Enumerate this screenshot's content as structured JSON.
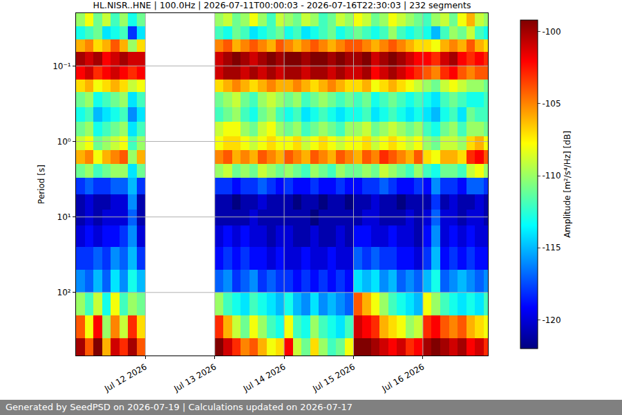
{
  "chart_data": {
    "type": "heatmap",
    "title": "HL.NISR..HNE | 100.0Hz | 2026-07-11T00:00:03 - 2026-07-16T22:30:03 | 232 segments",
    "y_label": "Period [s]",
    "footer": "Generated by SeedPSD on 2026-07-19 | Calculations updated on 2026-07-17",
    "color": "jet",
    "log": "y",
    "grid": true,
    "xlim": [
      "2026-07-11T00:00:03",
      "2026-07-16T22:30:03"
    ],
    "ylim": [
      0.02,
      684
    ],
    "xticks": [
      {
        "value": "2026-07-12T00:00:00",
        "label": "Jul 12 2026"
      },
      {
        "value": "2026-07-13T00:00:00",
        "label": "Jul 13 2026"
      },
      {
        "value": "2026-07-14T00:00:00",
        "label": "Jul 14 2026"
      },
      {
        "value": "2026-07-15T00:00:00",
        "label": "Jul 15 2026"
      },
      {
        "value": "2026-07-16T00:00:00",
        "label": "Jul 16 2026"
      }
    ],
    "yticks": [
      {
        "value": 0.1,
        "label": "10⁻¹"
      },
      {
        "value": 1,
        "label": "10⁰"
      },
      {
        "value": 10,
        "label": "10¹"
      },
      {
        "value": 100,
        "label": "10²"
      }
    ],
    "colorbar": {
      "title": "Amplitude [m²/s⁴/Hz] [dB]",
      "range": [
        -122,
        -99.2
      ],
      "ticks": [
        -100,
        -105,
        -110,
        -115,
        -120
      ]
    },
    "x": [
      "2026-07-11T00:00:03",
      "2026-07-11T03:00:03",
      "2026-07-11T06:00:03",
      "2026-07-11T09:00:03",
      "2026-07-11T12:00:03",
      "2026-07-11T15:00:03",
      "2026-07-11T18:00:03",
      "2026-07-11T21:00:03",
      "2026-07-12T00:00:03",
      "2026-07-12T03:00:03",
      "2026-07-12T06:00:03",
      "2026-07-12T09:00:03",
      "2026-07-12T12:00:03",
      "2026-07-12T15:00:03",
      "2026-07-12T18:00:03",
      "2026-07-12T21:00:03",
      "2026-07-13T00:00:03",
      "2026-07-13T03:00:03",
      "2026-07-13T06:00:03",
      "2026-07-13T09:00:03",
      "2026-07-13T12:00:03",
      "2026-07-13T15:00:03",
      "2026-07-13T18:00:03",
      "2026-07-13T21:00:03",
      "2026-07-14T00:00:03",
      "2026-07-14T03:00:03",
      "2026-07-14T06:00:03",
      "2026-07-14T09:00:03",
      "2026-07-14T12:00:03",
      "2026-07-14T15:00:03",
      "2026-07-14T18:00:03",
      "2026-07-14T21:00:03",
      "2026-07-15T00:00:03",
      "2026-07-15T03:00:03",
      "2026-07-15T06:00:03",
      "2026-07-15T09:00:03",
      "2026-07-15T12:00:03",
      "2026-07-15T15:00:03",
      "2026-07-15T18:00:03",
      "2026-07-15T21:00:03",
      "2026-07-16T00:00:03",
      "2026-07-16T03:00:03",
      "2026-07-16T06:00:03",
      "2026-07-16T09:00:03",
      "2026-07-16T12:00:03",
      "2026-07-16T15:00:03",
      "2026-07-16T18:00:03",
      "2026-07-16T21:00:03",
      "2026-07-16T22:30:03"
    ],
    "y": [
      0.02,
      0.03,
      0.045,
      0.065,
      0.1,
      0.15,
      0.22,
      0.35,
      0.55,
      0.85,
      1.3,
      2,
      3,
      5,
      8,
      13,
      25,
      50,
      100,
      200,
      400,
      684
    ],
    "z": [
      [
        -110,
        -108,
        -111,
        -109,
        -112,
        -110,
        -113,
        -111,
        null,
        null,
        null,
        null,
        null,
        null,
        null,
        null,
        -110,
        -109,
        -111,
        -110,
        -108,
        -110,
        -112,
        -109,
        -110,
        -111,
        -109,
        -110,
        -112,
        -111,
        -109,
        -110,
        -108,
        -109,
        -111,
        -110,
        -108,
        -109,
        -110,
        -111,
        -112,
        -110,
        -109,
        -111,
        -108,
        -106,
        -109,
        -110
      ],
      [
        -113,
        -112,
        -111,
        -114,
        -113,
        -112,
        -118,
        -114,
        null,
        null,
        null,
        null,
        null,
        null,
        null,
        null,
        -112,
        -113,
        -111,
        -112,
        -114,
        -113,
        -112,
        -111,
        -113,
        -112,
        -114,
        -113,
        -112,
        -111,
        -113,
        -112,
        -111,
        -112,
        -113,
        -112,
        -110,
        -112,
        -113,
        -112,
        -113,
        -115,
        -112,
        -110,
        -111,
        -109,
        -112,
        -113
      ],
      [
        -106,
        -105,
        -107,
        -106,
        -104,
        -106,
        -110,
        -107,
        null,
        null,
        null,
        null,
        null,
        null,
        null,
        null,
        -105,
        -104,
        -106,
        -105,
        -104,
        -105,
        -106,
        -104,
        -105,
        -106,
        -105,
        -104,
        -105,
        -106,
        -105,
        -104,
        -104,
        -105,
        -106,
        -105,
        -104,
        -105,
        -106,
        -107,
        -107,
        -108,
        -106,
        -105,
        -106,
        -104,
        -106,
        -107
      ],
      [
        -100,
        -101,
        -100,
        -102,
        -101,
        -100,
        -101,
        -101,
        null,
        null,
        null,
        null,
        null,
        null,
        null,
        null,
        -101,
        -100,
        -99,
        -100,
        -101,
        -100,
        -99,
        -100,
        -99,
        -99,
        -100,
        -99,
        -99,
        -100,
        -99,
        -100,
        -100,
        -99,
        -101,
        -100,
        -99,
        -100,
        -101,
        -102,
        -102,
        -103,
        -101,
        -100,
        -102,
        -103,
        -102,
        -103
      ],
      [
        -102,
        -101,
        -103,
        -102,
        -101,
        -102,
        -103,
        -102,
        null,
        null,
        null,
        null,
        null,
        null,
        null,
        null,
        -101,
        -100,
        -100,
        -101,
        -100,
        -101,
        -100,
        -101,
        -100,
        -100,
        -101,
        -100,
        -100,
        -101,
        -100,
        -101,
        -101,
        -100,
        -102,
        -101,
        -100,
        -101,
        -102,
        -103,
        -104,
        -105,
        -103,
        -102,
        -104,
        -105,
        -104,
        -104
      ],
      [
        -107,
        -106,
        -108,
        -107,
        -106,
        -107,
        -109,
        -108,
        null,
        null,
        null,
        null,
        null,
        null,
        null,
        null,
        -107,
        -106,
        -105,
        -106,
        -107,
        -106,
        -105,
        -106,
        -106,
        -105,
        -106,
        -107,
        -106,
        -105,
        -106,
        -107,
        -107,
        -106,
        -108,
        -107,
        -106,
        -107,
        -108,
        -109,
        -110,
        -111,
        -109,
        -108,
        -109,
        -110,
        -110,
        -111
      ],
      [
        -111,
        -110,
        -113,
        -112,
        -111,
        -110,
        -114,
        -112,
        null,
        null,
        null,
        null,
        null,
        null,
        null,
        null,
        -111,
        -110,
        -109,
        -111,
        -112,
        -110,
        -109,
        -110,
        -111,
        -110,
        -112,
        -111,
        -110,
        -111,
        -112,
        -111,
        -112,
        -111,
        -113,
        -112,
        -111,
        -112,
        -113,
        -112,
        -113,
        -114,
        -112,
        -111,
        -112,
        -113,
        -113,
        -112
      ],
      [
        -113,
        -112,
        -115,
        -114,
        -113,
        -112,
        -116,
        -114,
        null,
        null,
        null,
        null,
        null,
        null,
        null,
        null,
        -112,
        -111,
        -110,
        -112,
        -113,
        -111,
        -110,
        -112,
        -113,
        -112,
        -114,
        -113,
        -112,
        -113,
        -114,
        -113,
        -113,
        -112,
        -114,
        -113,
        -112,
        -113,
        -114,
        -113,
        -114,
        -115,
        -113,
        -112,
        -114,
        -111,
        -112,
        -112
      ],
      [
        -111,
        -110,
        -113,
        -112,
        -111,
        -110,
        -114,
        -112,
        null,
        null,
        null,
        null,
        null,
        null,
        null,
        null,
        -109,
        -108,
        -108,
        -110,
        -111,
        -109,
        -108,
        -110,
        -111,
        -110,
        -112,
        -111,
        -110,
        -111,
        -112,
        -110,
        -110,
        -109,
        -111,
        -110,
        -109,
        -110,
        -111,
        -110,
        -112,
        -113,
        -111,
        -110,
        -112,
        -110,
        -110,
        -111
      ],
      [
        -109,
        -108,
        -111,
        -110,
        -109,
        -108,
        -112,
        -110,
        null,
        null,
        null,
        null,
        null,
        null,
        null,
        null,
        -108,
        -107,
        -107,
        -108,
        -109,
        -108,
        -107,
        -108,
        -108,
        -107,
        -109,
        -108,
        -107,
        -108,
        -109,
        -108,
        -108,
        -107,
        -109,
        -108,
        -107,
        -108,
        -109,
        -108,
        -110,
        -111,
        -109,
        -109,
        -110,
        -107,
        -106,
        -108
      ],
      [
        -106,
        -105,
        -108,
        -106,
        -105,
        -104,
        -110,
        -106,
        null,
        null,
        null,
        null,
        null,
        null,
        null,
        null,
        -105,
        -104,
        -106,
        -105,
        -106,
        -104,
        -105,
        -106,
        -104,
        -105,
        -106,
        -104,
        -105,
        -106,
        -104,
        -105,
        -106,
        -104,
        -105,
        -103,
        -104,
        -105,
        -106,
        -104,
        -107,
        -108,
        -106,
        -106,
        -107,
        -103,
        -102,
        -104
      ],
      [
        -111,
        -110,
        -112,
        -111,
        -110,
        -110,
        -114,
        -111,
        null,
        null,
        null,
        null,
        null,
        null,
        null,
        null,
        -110,
        -109,
        -111,
        -110,
        -111,
        -109,
        -110,
        -111,
        -110,
        -111,
        -112,
        -110,
        -111,
        -112,
        -110,
        -111,
        -111,
        -110,
        -111,
        -109,
        -110,
        -111,
        -112,
        -110,
        -112,
        -113,
        -111,
        -111,
        -112,
        -109,
        -108,
        -110
      ],
      [
        -118,
        -117,
        -118,
        -118,
        -117,
        -117,
        -115,
        -118,
        null,
        null,
        null,
        null,
        null,
        null,
        null,
        null,
        -118,
        -118,
        -119,
        -118,
        -118,
        -117,
        -118,
        -119,
        -118,
        -119,
        -119,
        -118,
        -119,
        -119,
        -118,
        -119,
        -119,
        -118,
        -118,
        -117,
        -118,
        -119,
        -119,
        -118,
        -119,
        -116,
        -118,
        -118,
        -119,
        -117,
        -117,
        -118
      ],
      [
        -121,
        -120,
        -121,
        -121,
        -120,
        -120,
        -116,
        -121,
        null,
        null,
        null,
        null,
        null,
        null,
        null,
        null,
        -121,
        -121,
        -122,
        -121,
        -121,
        -120,
        -121,
        -121,
        -121,
        -122,
        -121,
        -121,
        -122,
        -121,
        -121,
        -122,
        -121,
        -121,
        -120,
        -121,
        -121,
        -122,
        -121,
        -121,
        -121,
        -118,
        -121,
        -120,
        -121,
        -121,
        -120,
        -121
      ],
      [
        -121,
        -120,
        -121,
        -120,
        -120,
        -120,
        -117,
        -121,
        null,
        null,
        null,
        null,
        null,
        null,
        null,
        null,
        -121,
        -121,
        -121,
        -121,
        -120,
        -121,
        -121,
        -121,
        -121,
        -121,
        -121,
        -122,
        -121,
        -121,
        -121,
        -121,
        -121,
        -120,
        -120,
        -121,
        -121,
        -121,
        -120,
        -121,
        -120,
        -117,
        -120,
        -120,
        -121,
        -120,
        -120,
        -121
      ],
      [
        -120,
        -119,
        -120,
        -119,
        -119,
        -118,
        -116,
        -120,
        null,
        null,
        null,
        null,
        null,
        null,
        null,
        null,
        -120,
        -119,
        -120,
        -119,
        -120,
        -120,
        -121,
        -120,
        -120,
        -121,
        -121,
        -120,
        -121,
        -121,
        -120,
        -121,
        -119,
        -119,
        -120,
        -120,
        -119,
        -120,
        -120,
        -121,
        -119,
        -116,
        -120,
        -119,
        -120,
        -119,
        -120,
        -120
      ],
      [
        -118,
        -118,
        -117,
        -118,
        -116,
        -117,
        -115,
        -118,
        null,
        null,
        null,
        null,
        null,
        null,
        null,
        null,
        -119,
        -118,
        -119,
        -118,
        -119,
        -119,
        -120,
        -119,
        -120,
        -120,
        -119,
        -120,
        -120,
        -119,
        -120,
        -120,
        -117,
        -118,
        -117,
        -118,
        -118,
        -119,
        -119,
        -120,
        -118,
        -115,
        -119,
        -118,
        -119,
        -118,
        -119,
        -119
      ],
      [
        -116,
        -117,
        -115,
        -117,
        -114,
        -116,
        -113,
        -115,
        null,
        null,
        null,
        null,
        null,
        null,
        null,
        null,
        -117,
        -116,
        -118,
        -117,
        -116,
        -118,
        -117,
        -118,
        -118,
        -119,
        -118,
        -119,
        -118,
        -119,
        -118,
        -119,
        -114,
        -115,
        -114,
        -116,
        -115,
        -117,
        -116,
        -117,
        -115,
        -113,
        -117,
        -116,
        -115,
        -116,
        -117,
        -116
      ],
      [
        -110,
        -112,
        -109,
        -113,
        -108,
        -112,
        -110,
        -111,
        null,
        null,
        null,
        null,
        null,
        null,
        null,
        null,
        -110,
        -112,
        -113,
        -114,
        -112,
        -113,
        -114,
        -115,
        -113,
        -115,
        -116,
        -114,
        -116,
        -115,
        -116,
        -117,
        -104,
        -106,
        -108,
        -110,
        -112,
        -113,
        -114,
        -115,
        -108,
        -110,
        -112,
        -113,
        -114,
        -113,
        -114,
        -112
      ],
      [
        -104,
        -108,
        -102,
        -110,
        -105,
        -109,
        -103,
        -107,
        null,
        null,
        null,
        null,
        null,
        null,
        null,
        null,
        -103,
        -106,
        -109,
        -111,
        -108,
        -110,
        -112,
        -113,
        -108,
        -112,
        -113,
        -110,
        -112,
        -113,
        -114,
        -112,
        -101,
        -102,
        -103,
        -106,
        -107,
        -108,
        -110,
        -109,
        -103,
        -102,
        -104,
        -105,
        -104,
        -106,
        -107,
        -108
      ],
      [
        -100,
        -104,
        -99,
        -106,
        -101,
        -103,
        -100,
        -104,
        null,
        null,
        null,
        null,
        null,
        null,
        null,
        null,
        -99,
        -101,
        -103,
        -105,
        -104,
        -106,
        -108,
        -107,
        -102,
        -109,
        -111,
        -107,
        -110,
        -112,
        -111,
        -108,
        -99,
        -99,
        -100,
        -101,
        -102,
        -101,
        -103,
        -102,
        -100,
        -99,
        -100,
        -101,
        -100,
        -102,
        -101,
        -103
      ]
    ]
  }
}
